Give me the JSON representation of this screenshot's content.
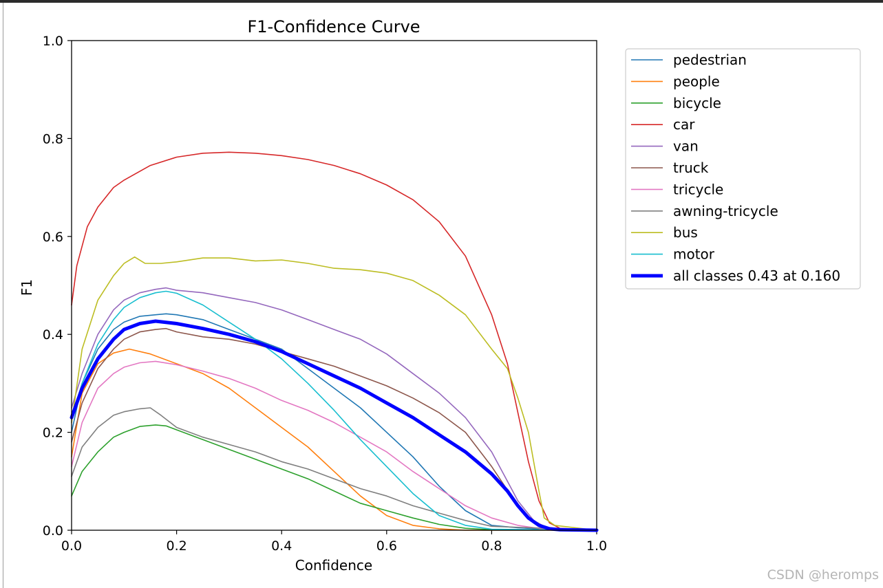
{
  "chart_data": {
    "type": "line",
    "title": "F1-Confidence Curve",
    "xlabel": "Confidence",
    "ylabel": "F1",
    "xlim": [
      0.0,
      1.0
    ],
    "ylim": [
      0.0,
      1.0
    ],
    "xticks": [
      "0.0",
      "0.2",
      "0.4",
      "0.6",
      "0.8",
      "1.0"
    ],
    "yticks": [
      "0.0",
      "0.2",
      "0.4",
      "0.6",
      "0.8",
      "1.0"
    ],
    "grid": false,
    "legend_position": "outside-right",
    "series": [
      {
        "name": "pedestrian",
        "color": "#1f77b4",
        "x": [
          0,
          0.02,
          0.05,
          0.08,
          0.1,
          0.13,
          0.16,
          0.18,
          0.2,
          0.25,
          0.3,
          0.35,
          0.4,
          0.45,
          0.5,
          0.55,
          0.6,
          0.65,
          0.7,
          0.75,
          0.8,
          0.85,
          0.9,
          1.0
        ],
        "y": [
          0.2,
          0.3,
          0.37,
          0.41,
          0.425,
          0.437,
          0.44,
          0.442,
          0.44,
          0.43,
          0.41,
          0.39,
          0.37,
          0.33,
          0.29,
          0.25,
          0.2,
          0.15,
          0.09,
          0.04,
          0.01,
          0.005,
          0.002,
          0.0
        ]
      },
      {
        "name": "people",
        "color": "#ff7f0e",
        "x": [
          0,
          0.02,
          0.05,
          0.08,
          0.11,
          0.15,
          0.2,
          0.25,
          0.3,
          0.35,
          0.4,
          0.45,
          0.5,
          0.55,
          0.6,
          0.65,
          0.7,
          0.75,
          0.8,
          1.0
        ],
        "y": [
          0.15,
          0.28,
          0.34,
          0.362,
          0.37,
          0.36,
          0.34,
          0.32,
          0.29,
          0.25,
          0.21,
          0.17,
          0.12,
          0.07,
          0.03,
          0.01,
          0.003,
          0.0,
          0.0,
          0.0
        ]
      },
      {
        "name": "bicycle",
        "color": "#2ca02c",
        "x": [
          0,
          0.02,
          0.05,
          0.08,
          0.1,
          0.13,
          0.16,
          0.18,
          0.2,
          0.25,
          0.3,
          0.35,
          0.4,
          0.45,
          0.5,
          0.55,
          0.6,
          0.65,
          0.7,
          0.75,
          0.8,
          1.0
        ],
        "y": [
          0.07,
          0.12,
          0.16,
          0.19,
          0.2,
          0.212,
          0.215,
          0.213,
          0.205,
          0.185,
          0.165,
          0.145,
          0.125,
          0.105,
          0.08,
          0.055,
          0.04,
          0.025,
          0.012,
          0.004,
          0.001,
          0.0
        ]
      },
      {
        "name": "car",
        "color": "#d62728",
        "x": [
          0,
          0.01,
          0.03,
          0.05,
          0.08,
          0.1,
          0.15,
          0.2,
          0.25,
          0.3,
          0.35,
          0.4,
          0.45,
          0.5,
          0.55,
          0.6,
          0.65,
          0.7,
          0.75,
          0.8,
          0.83,
          0.85,
          0.87,
          0.89,
          0.91,
          0.93,
          1.0
        ],
        "y": [
          0.46,
          0.54,
          0.62,
          0.66,
          0.7,
          0.715,
          0.745,
          0.762,
          0.77,
          0.772,
          0.77,
          0.765,
          0.757,
          0.745,
          0.728,
          0.705,
          0.675,
          0.63,
          0.56,
          0.44,
          0.34,
          0.24,
          0.14,
          0.06,
          0.015,
          0.004,
          0.0
        ]
      },
      {
        "name": "van",
        "color": "#9467bd",
        "x": [
          0,
          0.02,
          0.05,
          0.08,
          0.1,
          0.13,
          0.16,
          0.18,
          0.2,
          0.25,
          0.3,
          0.35,
          0.4,
          0.45,
          0.5,
          0.55,
          0.6,
          0.65,
          0.7,
          0.75,
          0.8,
          0.83,
          0.85,
          0.88,
          0.9,
          0.92,
          1.0
        ],
        "y": [
          0.25,
          0.32,
          0.4,
          0.45,
          0.47,
          0.485,
          0.492,
          0.495,
          0.49,
          0.485,
          0.475,
          0.465,
          0.45,
          0.43,
          0.41,
          0.39,
          0.36,
          0.32,
          0.28,
          0.23,
          0.16,
          0.1,
          0.06,
          0.02,
          0.008,
          0.003,
          0.0
        ]
      },
      {
        "name": "truck",
        "color": "#8c564b",
        "x": [
          0,
          0.02,
          0.05,
          0.08,
          0.1,
          0.13,
          0.16,
          0.18,
          0.2,
          0.25,
          0.3,
          0.35,
          0.4,
          0.45,
          0.5,
          0.55,
          0.6,
          0.65,
          0.7,
          0.75,
          0.8,
          0.85,
          0.88,
          0.9,
          1.0
        ],
        "y": [
          0.18,
          0.26,
          0.33,
          0.37,
          0.39,
          0.405,
          0.41,
          0.412,
          0.405,
          0.395,
          0.39,
          0.38,
          0.365,
          0.35,
          0.335,
          0.315,
          0.295,
          0.27,
          0.24,
          0.2,
          0.13,
          0.05,
          0.015,
          0.005,
          0.0
        ]
      },
      {
        "name": "tricycle",
        "color": "#e377c2",
        "x": [
          0,
          0.02,
          0.05,
          0.08,
          0.1,
          0.13,
          0.16,
          0.2,
          0.25,
          0.3,
          0.35,
          0.4,
          0.45,
          0.5,
          0.55,
          0.6,
          0.65,
          0.7,
          0.75,
          0.8,
          0.85,
          0.9,
          1.0
        ],
        "y": [
          0.13,
          0.22,
          0.29,
          0.32,
          0.333,
          0.342,
          0.345,
          0.338,
          0.325,
          0.31,
          0.29,
          0.265,
          0.245,
          0.22,
          0.19,
          0.16,
          0.12,
          0.085,
          0.05,
          0.025,
          0.01,
          0.002,
          0.0
        ]
      },
      {
        "name": "awning-tricycle",
        "color": "#7f7f7f",
        "x": [
          0,
          0.02,
          0.05,
          0.08,
          0.1,
          0.13,
          0.15,
          0.17,
          0.2,
          0.25,
          0.3,
          0.35,
          0.4,
          0.45,
          0.5,
          0.55,
          0.6,
          0.65,
          0.7,
          0.75,
          0.8,
          1.0
        ],
        "y": [
          0.11,
          0.17,
          0.21,
          0.235,
          0.242,
          0.248,
          0.25,
          0.235,
          0.21,
          0.19,
          0.175,
          0.16,
          0.14,
          0.125,
          0.105,
          0.085,
          0.07,
          0.05,
          0.035,
          0.02,
          0.008,
          0.0
        ]
      },
      {
        "name": "bus",
        "color": "#bcbd22",
        "x": [
          0,
          0.02,
          0.05,
          0.08,
          0.1,
          0.12,
          0.14,
          0.17,
          0.2,
          0.25,
          0.3,
          0.35,
          0.4,
          0.45,
          0.5,
          0.55,
          0.6,
          0.65,
          0.7,
          0.75,
          0.8,
          0.83,
          0.85,
          0.87,
          0.89,
          0.9,
          0.92,
          1.0
        ],
        "y": [
          0.22,
          0.37,
          0.47,
          0.52,
          0.545,
          0.558,
          0.545,
          0.545,
          0.548,
          0.556,
          0.556,
          0.55,
          0.552,
          0.545,
          0.535,
          0.532,
          0.525,
          0.51,
          0.48,
          0.44,
          0.37,
          0.33,
          0.27,
          0.2,
          0.08,
          0.025,
          0.01,
          0.0
        ]
      },
      {
        "name": "motor",
        "color": "#17becf",
        "x": [
          0,
          0.02,
          0.05,
          0.08,
          0.1,
          0.13,
          0.16,
          0.18,
          0.2,
          0.25,
          0.3,
          0.35,
          0.4,
          0.45,
          0.5,
          0.55,
          0.6,
          0.65,
          0.7,
          0.75,
          0.8,
          1.0
        ],
        "y": [
          0.23,
          0.3,
          0.38,
          0.43,
          0.455,
          0.475,
          0.485,
          0.488,
          0.484,
          0.46,
          0.425,
          0.39,
          0.35,
          0.3,
          0.245,
          0.185,
          0.13,
          0.075,
          0.03,
          0.01,
          0.002,
          0.0
        ]
      },
      {
        "name": "all classes 0.43 at 0.160",
        "color": "#0000ff",
        "bold": true,
        "x": [
          0,
          0.02,
          0.05,
          0.08,
          0.1,
          0.13,
          0.16,
          0.2,
          0.25,
          0.3,
          0.35,
          0.4,
          0.45,
          0.5,
          0.55,
          0.6,
          0.65,
          0.7,
          0.75,
          0.8,
          0.83,
          0.85,
          0.87,
          0.89,
          0.91,
          0.93,
          1.0
        ],
        "y": [
          0.23,
          0.29,
          0.35,
          0.39,
          0.41,
          0.422,
          0.427,
          0.422,
          0.412,
          0.4,
          0.385,
          0.365,
          0.34,
          0.315,
          0.29,
          0.26,
          0.23,
          0.195,
          0.16,
          0.115,
          0.08,
          0.05,
          0.025,
          0.01,
          0.003,
          0.001,
          0.0
        ]
      }
    ]
  },
  "watermark": "CSDN @heromps"
}
